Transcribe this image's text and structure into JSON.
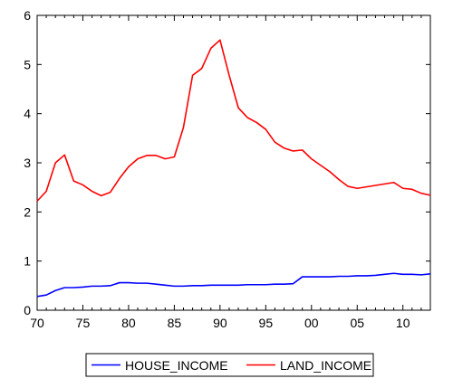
{
  "chart_data": {
    "type": "line",
    "title": "",
    "xlabel": "",
    "ylabel": "",
    "xlim": [
      1970,
      2013
    ],
    "ylim": [
      0,
      6
    ],
    "x_ticks": [
      1970,
      1975,
      1980,
      1985,
      1990,
      1995,
      2000,
      2005,
      2010
    ],
    "x_tick_labels": [
      "70",
      "75",
      "80",
      "85",
      "90",
      "95",
      "00",
      "05",
      "10"
    ],
    "y_ticks": [
      0,
      1,
      2,
      3,
      4,
      5,
      6
    ],
    "y_tick_labels": [
      "0",
      "1",
      "2",
      "3",
      "4",
      "5",
      "6"
    ],
    "grid": false,
    "legend_position": "bottom",
    "x": [
      1970,
      1971,
      1972,
      1973,
      1974,
      1975,
      1976,
      1977,
      1978,
      1979,
      1980,
      1981,
      1982,
      1983,
      1984,
      1985,
      1986,
      1987,
      1988,
      1989,
      1990,
      1991,
      1992,
      1993,
      1994,
      1995,
      1996,
      1997,
      1998,
      1999,
      2000,
      2001,
      2002,
      2003,
      2004,
      2005,
      2006,
      2007,
      2008,
      2009,
      2010,
      2011,
      2012,
      2013
    ],
    "series": [
      {
        "name": "HOUSE_INCOME",
        "color": "#0000ff",
        "values": [
          0.28,
          0.31,
          0.4,
          0.46,
          0.46,
          0.47,
          0.49,
          0.49,
          0.5,
          0.56,
          0.56,
          0.55,
          0.55,
          0.53,
          0.51,
          0.49,
          0.49,
          0.5,
          0.5,
          0.51,
          0.51,
          0.51,
          0.51,
          0.52,
          0.52,
          0.52,
          0.53,
          0.53,
          0.54,
          0.68,
          0.68,
          0.68,
          0.68,
          0.69,
          0.69,
          0.7,
          0.7,
          0.71,
          0.73,
          0.75,
          0.73,
          0.73,
          0.72,
          0.74
        ]
      },
      {
        "name": "LAND_INCOME",
        "color": "#ff0000",
        "values": [
          2.22,
          2.42,
          3.0,
          3.16,
          2.63,
          2.55,
          2.42,
          2.33,
          2.4,
          2.68,
          2.92,
          3.08,
          3.15,
          3.15,
          3.08,
          3.12,
          3.72,
          4.78,
          4.92,
          5.33,
          5.5,
          4.78,
          4.12,
          3.92,
          3.82,
          3.68,
          3.42,
          3.3,
          3.24,
          3.26,
          3.08,
          2.95,
          2.82,
          2.66,
          2.52,
          2.48,
          2.51,
          2.54,
          2.57,
          2.6,
          2.48,
          2.46,
          2.38,
          2.34
        ]
      }
    ]
  }
}
